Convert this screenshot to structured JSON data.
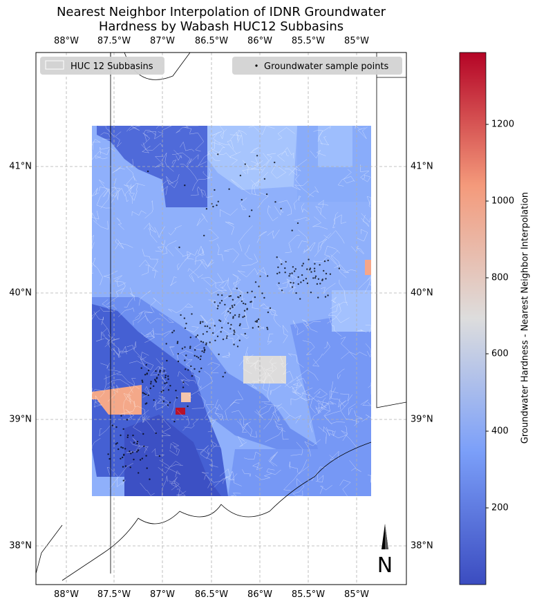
{
  "title_lines": [
    "Nearest Neighbor Interpolation of IDNR Groundwater",
    "Hardness by Wabash HUC12 Subbasins"
  ],
  "lon_ticks": [
    "88°W",
    "87.5°W",
    "87°W",
    "86.5°W",
    "86°W",
    "85.5°W",
    "85°W"
  ],
  "lat_ticks": [
    "41°N",
    "40°N",
    "39°N",
    "38°N"
  ],
  "legend": {
    "subbasins": "HUC 12 Subbasins",
    "points": "Groundwater sample points"
  },
  "colorbar": {
    "label": "Groundwater Hardness - Nearest Neighbor Interpolation",
    "ticks": [
      "200",
      "400",
      "600",
      "800",
      "1000",
      "1200"
    ],
    "min": 5,
    "max": 1290,
    "colormap": "coolwarm"
  },
  "north_arrow": "N",
  "extent": {
    "lon": [
      -88.2,
      -84.6
    ],
    "lat": [
      37.7,
      41.9
    ]
  },
  "colors": {
    "frame": "#000000",
    "grid": "#b0b0b0",
    "legend_bg": "#d3d3d3",
    "subbasin_lines": "#ffffff",
    "points": "#000000"
  }
}
